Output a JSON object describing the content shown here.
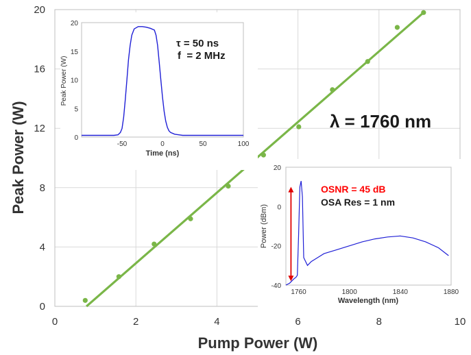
{
  "chart_data": [
    {
      "type": "scatter",
      "xlabel": "Pump Power (W)",
      "ylabel": "Peak Power (W)",
      "xlim": [
        0,
        10
      ],
      "ylim": [
        0,
        20
      ],
      "xticks": [
        "0",
        "2",
        "4",
        "6",
        "8",
        "10"
      ],
      "yticks": [
        "0",
        "4",
        "8",
        "12",
        "16",
        "20"
      ],
      "grid": true,
      "annotation": "λ  = 1760 nm",
      "series": [
        {
          "kind": "points",
          "x": [
            0.75,
            1.58,
            2.45,
            3.35,
            4.28,
            5.15,
            6.02,
            6.85,
            7.72,
            8.45,
            9.1
          ],
          "y": [
            0.4,
            2.0,
            4.2,
            5.9,
            8.1,
            10.2,
            12.1,
            14.6,
            16.5,
            18.8,
            19.8
          ]
        },
        {
          "kind": "fit-line",
          "x": [
            0.78,
            9.1
          ],
          "y": [
            0.0,
            19.8
          ]
        }
      ],
      "colors": {
        "points": "#7ab648",
        "line": "#7ab648",
        "grid": "#d9d9d9"
      }
    },
    {
      "type": "line",
      "xlabel": "Time (ns)",
      "ylabel": "Peak Power (W)",
      "xlim": [
        -100,
        100
      ],
      "ylim": [
        0,
        20
      ],
      "xticks": [
        "-50",
        "0",
        "50",
        "100"
      ],
      "yticks": [
        "0",
        "5",
        "10",
        "15",
        "20"
      ],
      "annotations": [
        "τ = 50 ns",
        "f  = 2 MHz"
      ],
      "x": [
        -100,
        -60,
        -55,
        -52,
        -50,
        -48,
        -46,
        -44,
        -42,
        -40,
        -38,
        -35,
        -30,
        -25,
        -20,
        -15,
        -10,
        -8,
        -6,
        -4,
        -2,
        0,
        2,
        4,
        6,
        8,
        10,
        15,
        20,
        25,
        30,
        50,
        100
      ],
      "y": [
        0.3,
        0.3,
        0.4,
        0.8,
        1.5,
        3.5,
        6.5,
        10.0,
        13.5,
        16.0,
        17.8,
        18.9,
        19.3,
        19.3,
        19.2,
        19.0,
        18.7,
        17.8,
        16.0,
        13.0,
        10.0,
        7.0,
        4.5,
        2.8,
        1.7,
        1.1,
        0.8,
        0.5,
        0.4,
        0.3,
        0.3,
        0.3,
        0.3
      ],
      "color": "#1f1fd6"
    },
    {
      "type": "line",
      "xlabel": "Wavelength (nm)",
      "ylabel": "Power (dBm)",
      "xlim": [
        1750,
        1880
      ],
      "ylim": [
        -40,
        20
      ],
      "xticks": [
        "1760",
        "1800",
        "1840",
        "1880"
      ],
      "yticks": [
        "-40",
        "-20",
        "0",
        "20"
      ],
      "annotations": [
        "OSNR = 45 dB",
        "OSA Res = 1 nm"
      ],
      "x": [
        1750,
        1753,
        1756,
        1758,
        1759,
        1760,
        1761,
        1762,
        1763,
        1764,
        1767,
        1770,
        1775,
        1780,
        1790,
        1800,
        1810,
        1820,
        1830,
        1840,
        1850,
        1860,
        1870,
        1878
      ],
      "y": [
        -40,
        -39,
        -37,
        -36,
        -35,
        -15,
        10,
        13,
        5,
        -26,
        -30,
        -28,
        -26,
        -24,
        -22,
        -20,
        -18,
        -16.5,
        -15.5,
        -15,
        -16,
        -18,
        -21,
        -25
      ],
      "colors": {
        "trace": "#1f1fd6",
        "osnr_text": "#ff0000",
        "arrow": "#e00000"
      },
      "arrow_range_dbm": [
        -38,
        10
      ]
    }
  ]
}
